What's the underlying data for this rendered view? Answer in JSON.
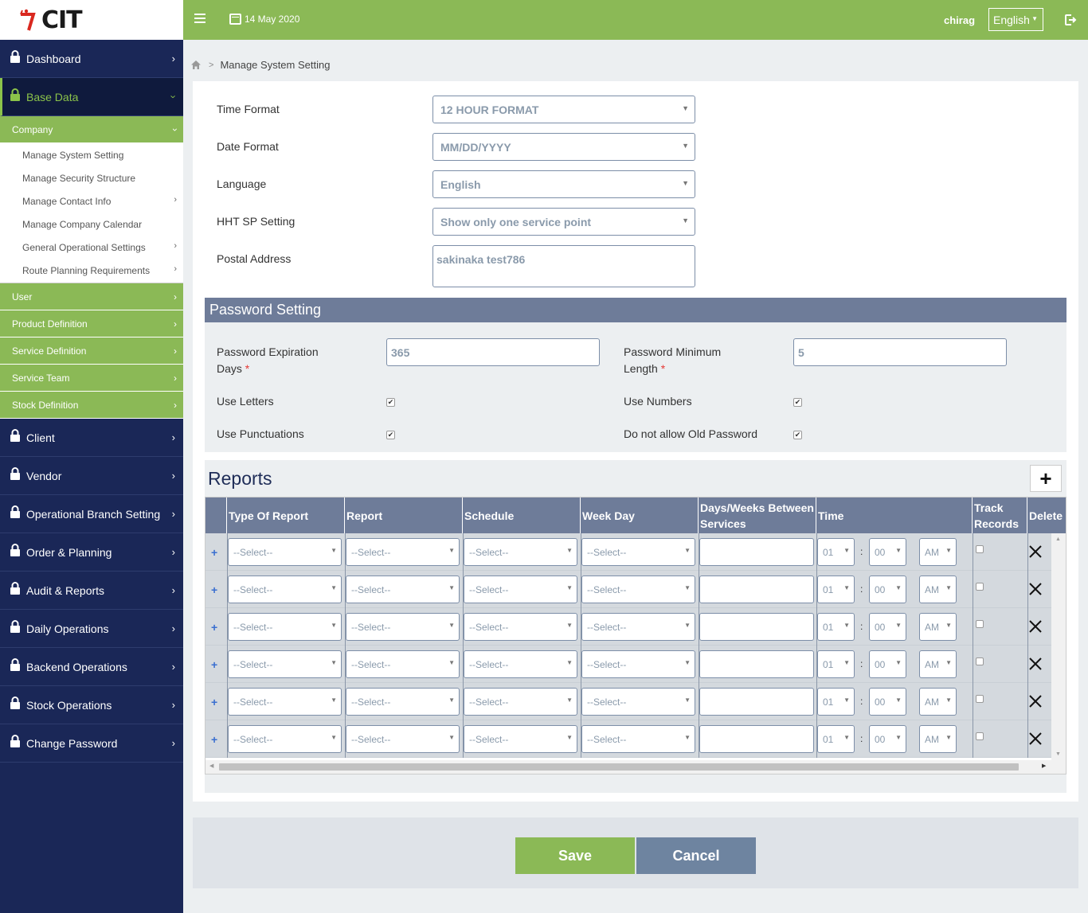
{
  "logo": {
    "text": "CIT"
  },
  "topbar": {
    "date": "14 May 2020",
    "username": "chirag",
    "language": "English"
  },
  "sidebar": {
    "dashboard": "Dashboard",
    "base_data": "Base Data",
    "company": "Company",
    "company_items": [
      {
        "label": "Manage System Setting",
        "has_sub": false
      },
      {
        "label": "Manage Security Structure",
        "has_sub": false
      },
      {
        "label": "Manage Contact Info",
        "has_sub": true
      },
      {
        "label": "Manage Company Calendar",
        "has_sub": false
      },
      {
        "label": "General Operational Settings",
        "has_sub": true
      },
      {
        "label": "Route Planning Requirements",
        "has_sub": true
      }
    ],
    "green_items": [
      "User",
      "Product Definition",
      "Service Definition",
      "Service Team",
      "Stock Definition"
    ],
    "main_items": [
      "Client",
      "Vendor",
      "Operational Branch Setting",
      "Order & Planning",
      "Audit & Reports",
      "Daily Operations",
      "Backend Operations",
      "Stock Operations",
      "Change Password"
    ]
  },
  "breadcrumb": {
    "current": "Manage System Setting"
  },
  "form": {
    "time_format": {
      "label": "Time Format",
      "value": "12 HOUR FORMAT"
    },
    "date_format": {
      "label": "Date Format",
      "value": "MM/DD/YYYY"
    },
    "language": {
      "label": "Language",
      "value": "English"
    },
    "hht_sp": {
      "label": "HHT SP Setting",
      "value": "Show only one service point"
    },
    "postal": {
      "label": "Postal Address",
      "value": "sakinaka test786"
    }
  },
  "password": {
    "title": "Password Setting",
    "expiration_label_1": "Password Expiration",
    "expiration_label_2": "Days",
    "expiration_value": "365",
    "min_length_label_1": "Password Minimum",
    "min_length_label_2": "Length",
    "min_length_value": "5",
    "use_letters": "Use Letters",
    "use_numbers": "Use Numbers",
    "use_punctuations": "Use Punctuations",
    "no_old_password": "Do not allow Old Password",
    "required_mark": "*"
  },
  "reports": {
    "title": "Reports",
    "headers": {
      "type": "Type Of Report",
      "report": "Report",
      "schedule": "Schedule",
      "week_day": "Week Day",
      "days_1": "Days/Weeks Between",
      "days_2": "Services",
      "time": "Time",
      "track_1": "Track",
      "track_2": "Records",
      "delete": "Delete"
    },
    "rows": [
      {
        "type": "--Select--",
        "report": "--Select--",
        "schedule": "--Select--",
        "week_day": "--Select--",
        "days": "",
        "hour": "01",
        "minute": "00",
        "ampm": "AM"
      },
      {
        "type": "--Select--",
        "report": "--Select--",
        "schedule": "--Select--",
        "week_day": "--Select--",
        "days": "",
        "hour": "01",
        "minute": "00",
        "ampm": "AM"
      },
      {
        "type": "--Select--",
        "report": "--Select--",
        "schedule": "--Select--",
        "week_day": "--Select--",
        "days": "",
        "hour": "01",
        "minute": "00",
        "ampm": "AM"
      },
      {
        "type": "--Select--",
        "report": "--Select--",
        "schedule": "--Select--",
        "week_day": "--Select--",
        "days": "",
        "hour": "01",
        "minute": "00",
        "ampm": "AM"
      },
      {
        "type": "--Select--",
        "report": "--Select--",
        "schedule": "--Select--",
        "week_day": "--Select--",
        "days": "",
        "hour": "01",
        "minute": "00",
        "ampm": "AM"
      },
      {
        "type": "--Select--",
        "report": "--Select--",
        "schedule": "--Select--",
        "week_day": "--Select--",
        "days": "",
        "hour": "01",
        "minute": "00",
        "ampm": "AM"
      }
    ]
  },
  "actions": {
    "save": "Save",
    "cancel": "Cancel"
  },
  "colors": {
    "green": "#8bb956",
    "navy": "#1a2757",
    "slate": "#6e7c99"
  }
}
